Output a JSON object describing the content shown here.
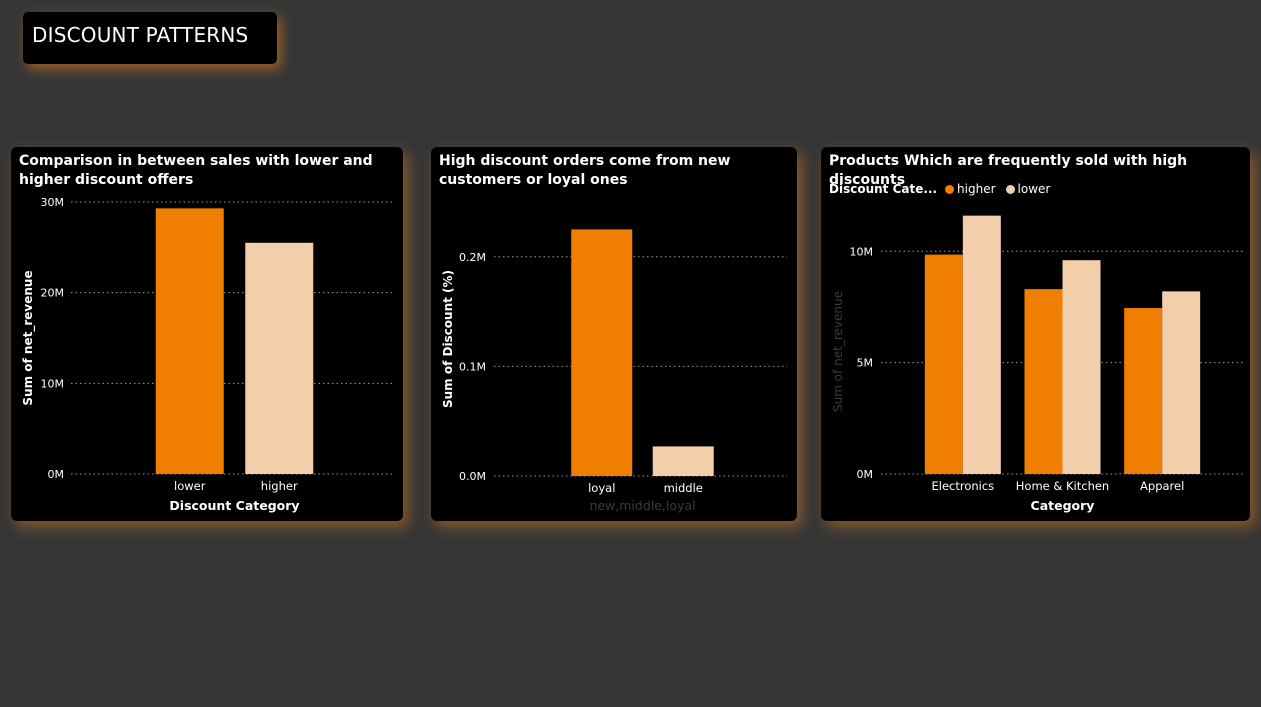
{
  "page_title": "DISCOUNT PATTERNS",
  "colors": {
    "orange": "#F07E00",
    "peach": "#F3CEAA",
    "card_bg": "#000000",
    "page_bg": "#363636"
  },
  "chart_data": [
    {
      "type": "bar",
      "title": "Comparison in between sales with lower and higher discount offers",
      "xlabel": "Discount Category",
      "ylabel": "Sum of net_revenue",
      "categories": [
        "lower",
        "higher"
      ],
      "values": [
        29.3,
        25.5
      ],
      "value_unit": "M",
      "bar_colors": [
        "#F07E00",
        "#F3CEAA"
      ],
      "ylim": [
        0,
        30
      ],
      "yticks": [
        0,
        10,
        20,
        30
      ],
      "ytick_labels": [
        "0M",
        "10M",
        "20M",
        "30M"
      ],
      "grid": true
    },
    {
      "type": "bar",
      "title": "High discount orders come from new customers or loyal ones",
      "xlabel": "new,middle,loyal",
      "ylabel": "Sum of Discount (%)",
      "categories": [
        "loyal",
        "middle"
      ],
      "values": [
        0.225,
        0.027
      ],
      "value_unit": "M",
      "bar_colors": [
        "#F07E00",
        "#F3CEAA"
      ],
      "ylim": [
        0,
        0.25
      ],
      "yticks": [
        0,
        0.1,
        0.2
      ],
      "ytick_labels": [
        "0.0M",
        "0.1M",
        "0.2M"
      ],
      "grid": true
    },
    {
      "type": "bar",
      "title": "Products Which are frequently sold with high discounts",
      "xlabel": "Category",
      "ylabel": "Sum of net_revenue",
      "legend_title": "Discount Cate...",
      "legend_position": "top-left",
      "categories": [
        "Electronics",
        "Home & Kitchen",
        "Apparel"
      ],
      "series": [
        {
          "name": "higher",
          "color": "#F07E00",
          "values": [
            9.85,
            8.3,
            7.45
          ]
        },
        {
          "name": "lower",
          "color": "#F3CEAA",
          "values": [
            11.6,
            9.6,
            8.2
          ]
        }
      ],
      "value_unit": "M",
      "ylim": [
        0,
        11
      ],
      "yticks": [
        0,
        5,
        10
      ],
      "ytick_labels": [
        "0M",
        "5M",
        "10M"
      ],
      "grid": true
    }
  ]
}
